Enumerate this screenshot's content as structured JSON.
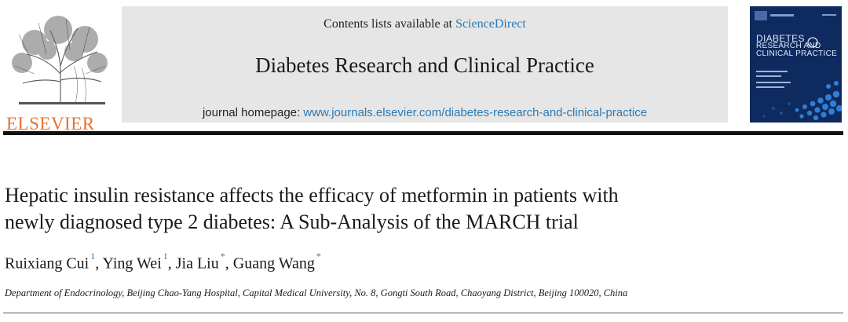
{
  "publisher": {
    "name": "ELSEVIER",
    "color": "#e8722a"
  },
  "banner": {
    "contents_prefix": "Contents lists available at ",
    "contents_link": "ScienceDirect",
    "journal_title": "Diabetes Research and Clinical Practice",
    "homepage_prefix": "journal homepage: ",
    "homepage_url": "www.journals.elsevier.com/diabetes-research-and-clinical-practice",
    "link_color": "#2a79b5"
  },
  "cover": {
    "line1": "DIABETES",
    "line2": "RESEARCH AND",
    "line3": "CLINICAL PRACTICE",
    "background": "#0f2a5f"
  },
  "article": {
    "title_line1": "Hepatic insulin resistance affects the efficacy of metformin in patients with",
    "title_line2": "newly diagnosed type 2 diabetes: A Sub-Analysis of the MARCH trial",
    "authors": [
      {
        "name": "Ruixiang Cui",
        "mark": "1",
        "sep": ", "
      },
      {
        "name": "Ying Wei",
        "mark": "1",
        "sep": ", "
      },
      {
        "name": "Jia Liu",
        "mark": "*",
        "sep": ", "
      },
      {
        "name": "Guang Wang",
        "mark": "*",
        "sep": ""
      }
    ],
    "affiliation": "Department of Endocrinology, Beijing Chao-Yang Hospital, Capital Medical University, No. 8, Gongti South Road, Chaoyang District, Beijing 100020, China"
  }
}
